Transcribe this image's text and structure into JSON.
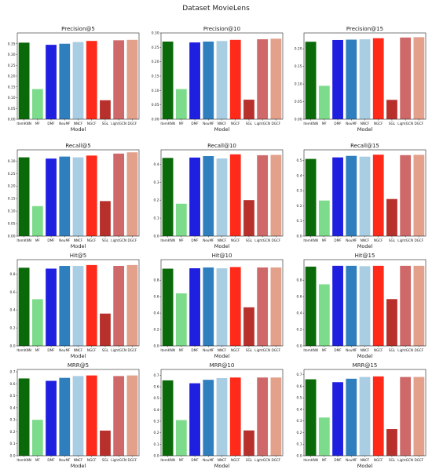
{
  "figure": {
    "title": "Dataset MovieLens"
  },
  "models": [
    "ItemKNN",
    "MF",
    "DMF",
    "NeuMF",
    "NNCF",
    "NGCF",
    "SGL",
    "LightGCN",
    "DGCF"
  ],
  "colors": {
    "ItemKNN": "#0a6a0a",
    "MF": "#7ddc8c",
    "DMF": "#1f1fe0",
    "NeuMF": "#2f7fbf",
    "NNCF": "#a9cde2",
    "NGCF": "#ff2a1a",
    "SGL": "#b8302c",
    "LightGCN": "#cf6868",
    "DGCF": "#e3a08b"
  },
  "chart_data": [
    {
      "type": "bar",
      "title": "Precision@5",
      "xlabel": "Model",
      "ylim": [
        0,
        0.4
      ],
      "yticks": [
        "0.00",
        "0.05",
        "0.10",
        "0.15",
        "0.20",
        "0.25",
        "0.30",
        "0.35"
      ],
      "values": [
        0.355,
        0.14,
        0.345,
        0.35,
        0.358,
        0.363,
        0.088,
        0.366,
        0.368
      ]
    },
    {
      "type": "bar",
      "title": "Precision@10",
      "xlabel": "Model",
      "ylim": [
        0,
        0.3
      ],
      "yticks": [
        "0.00",
        "0.05",
        "0.10",
        "0.15",
        "0.20",
        "0.25",
        "0.30"
      ],
      "values": [
        0.27,
        0.105,
        0.267,
        0.27,
        0.272,
        0.276,
        0.068,
        0.278,
        0.28
      ]
    },
    {
      "type": "bar",
      "title": "Precision@15",
      "xlabel": "Model",
      "ylim": [
        0,
        0.245
      ],
      "yticks": [
        "0.00",
        "0.05",
        "0.10",
        "0.15",
        "0.20"
      ],
      "values": [
        0.22,
        0.095,
        0.225,
        0.226,
        0.227,
        0.23,
        0.055,
        0.232,
        0.233
      ]
    },
    {
      "type": "bar",
      "title": "Recall@5",
      "xlabel": "Model",
      "ylim": [
        0,
        0.345
      ],
      "yticks": [
        "0.00",
        "0.05",
        "0.10",
        "0.15",
        "0.20",
        "0.25",
        "0.30"
      ],
      "values": [
        0.315,
        0.12,
        0.31,
        0.318,
        0.315,
        0.322,
        0.14,
        0.33,
        0.335
      ]
    },
    {
      "type": "bar",
      "title": "Recall@10",
      "xlabel": "Model",
      "ylim": [
        0,
        0.48
      ],
      "yticks": [
        "0.0",
        "0.1",
        "0.2",
        "0.3",
        "0.4"
      ],
      "values": [
        0.435,
        0.18,
        0.437,
        0.445,
        0.432,
        0.455,
        0.2,
        0.45,
        0.452
      ]
    },
    {
      "type": "bar",
      "title": "Recall@15",
      "xlabel": "Model",
      "ylim": [
        0,
        0.57
      ],
      "yticks": [
        "0.0",
        "0.1",
        "0.2",
        "0.3",
        "0.4",
        "0.5"
      ],
      "values": [
        0.51,
        0.235,
        0.52,
        0.53,
        0.525,
        0.538,
        0.245,
        0.535,
        0.537
      ]
    },
    {
      "type": "bar",
      "title": "Hit@5",
      "xlabel": "Model",
      "ylim": [
        0,
        0.96
      ],
      "yticks": [
        "0.0",
        "0.2",
        "0.4",
        "0.6",
        "0.8"
      ],
      "values": [
        0.87,
        0.52,
        0.86,
        0.89,
        0.89,
        0.9,
        0.36,
        0.89,
        0.9
      ]
    },
    {
      "type": "bar",
      "title": "Hit@10",
      "xlabel": "Model",
      "ylim": [
        0,
        1.05
      ],
      "yticks": [
        "0.0",
        "0.2",
        "0.4",
        "0.6",
        "0.8"
      ],
      "values": [
        0.94,
        0.64,
        0.945,
        0.955,
        0.945,
        0.96,
        0.47,
        0.955,
        0.955
      ]
    },
    {
      "type": "bar",
      "title": "Hit@15",
      "xlabel": "Model",
      "ylim": [
        0,
        1.05
      ],
      "yticks": [
        "0.0",
        "0.2",
        "0.4",
        "0.6",
        "0.8"
      ],
      "values": [
        0.965,
        0.75,
        0.975,
        0.975,
        0.97,
        0.975,
        0.57,
        0.975,
        0.975
      ]
    },
    {
      "type": "bar",
      "title": "MRR@5",
      "xlabel": "Model",
      "ylim": [
        0,
        0.72
      ],
      "yticks": [
        "0.0",
        "0.1",
        "0.2",
        "0.3",
        "0.4",
        "0.5",
        "0.6",
        "0.7"
      ],
      "values": [
        0.645,
        0.3,
        0.625,
        0.65,
        0.665,
        0.67,
        0.21,
        0.665,
        0.67
      ]
    },
    {
      "type": "bar",
      "title": "MRR@10",
      "xlabel": "Model",
      "ylim": [
        0,
        0.75
      ],
      "yticks": [
        "0.0",
        "0.1",
        "0.2",
        "0.3",
        "0.4",
        "0.5",
        "0.6",
        "0.7"
      ],
      "values": [
        0.655,
        0.31,
        0.63,
        0.66,
        0.675,
        0.68,
        0.22,
        0.68,
        0.68
      ]
    },
    {
      "type": "bar",
      "title": "MRR@15",
      "xlabel": "Model",
      "ylim": [
        0,
        0.745
      ],
      "yticks": [
        "0.0",
        "0.1",
        "0.2",
        "0.3",
        "0.4",
        "0.5",
        "0.6",
        "0.7"
      ],
      "values": [
        0.66,
        0.33,
        0.635,
        0.665,
        0.68,
        0.685,
        0.23,
        0.68,
        0.68
      ]
    }
  ]
}
